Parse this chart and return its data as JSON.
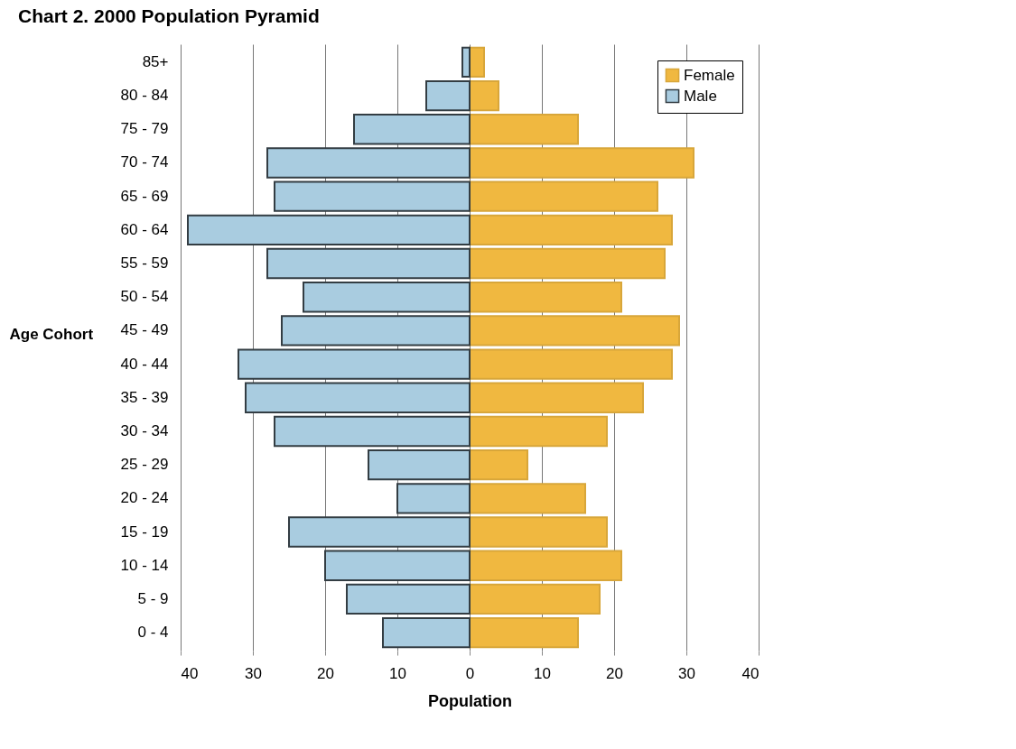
{
  "chart_data": {
    "type": "bar",
    "title": "Chart 2. 2000 Population Pyramid",
    "xlabel": "Population",
    "ylabel": "Age Cohort",
    "orientation": "horizontal",
    "stacked": true,
    "categories": [
      "85+",
      "80 - 84",
      "75 - 79",
      "70 - 74",
      "65 - 69",
      "60 - 64",
      "55 - 59",
      "50 - 54",
      "45 - 49",
      "40 - 44",
      "35 - 39",
      "30 - 34",
      "25 - 29",
      "20 - 24",
      "15 - 19",
      "10 - 14",
      "5 - 9",
      "0 - 4"
    ],
    "series": [
      {
        "name": "Female",
        "color": "#f0b840",
        "values": [
          2,
          4,
          15,
          31,
          26,
          28,
          27,
          21,
          29,
          28,
          24,
          19,
          8,
          16,
          19,
          21,
          18,
          15
        ]
      },
      {
        "name": "Male",
        "color": "#a9cce0",
        "values": [
          -1,
          -6,
          -16,
          -28,
          -27,
          -39,
          -28,
          -23,
          -26,
          -32,
          -31,
          -27,
          -14,
          -10,
          -25,
          -20,
          -17,
          -12
        ]
      }
    ],
    "xlim": [
      -40,
      40
    ],
    "xticks": [
      {
        "value": -40,
        "label": "40"
      },
      {
        "value": -30,
        "label": "30"
      },
      {
        "value": -20,
        "label": "20"
      },
      {
        "value": -10,
        "label": "10"
      },
      0,
      10,
      20,
      30,
      40
    ],
    "grid": "x",
    "legend": "top right"
  }
}
